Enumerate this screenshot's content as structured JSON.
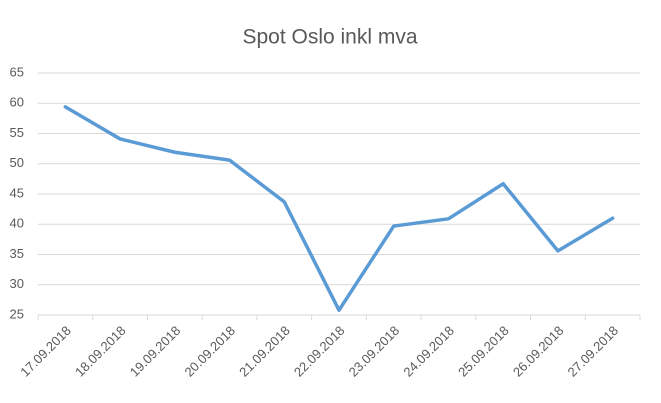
{
  "chart_data": {
    "type": "line",
    "title": "Spot Oslo inkl mva",
    "categories": [
      "17.09.2018",
      "18.09.2018",
      "19.09.2018",
      "20.09.2018",
      "21.09.2018",
      "22.09.2018",
      "23.09.2018",
      "24.09.2018",
      "25.09.2018",
      "26.09.2018",
      "27.09.2018"
    ],
    "series": [
      {
        "name": "Spot Oslo inkl mva",
        "color": "#5b9bd5",
        "values": [
          59.4,
          54.1,
          51.9,
          50.6,
          43.7,
          25.8,
          39.7,
          40.9,
          46.7,
          35.6,
          41.0
        ]
      }
    ],
    "ylim": [
      25,
      65
    ],
    "yticks": [
      25,
      30,
      35,
      40,
      45,
      50,
      55,
      60,
      65
    ],
    "grid": true
  }
}
